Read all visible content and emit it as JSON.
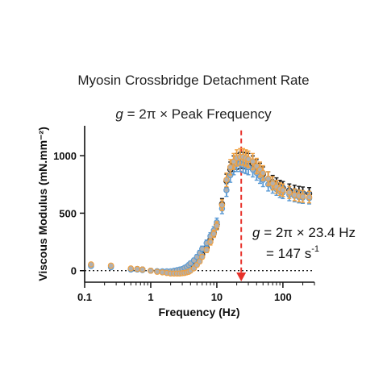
{
  "figure": {
    "title": "Myosin Crossbridge Detachment Rate",
    "equation": {
      "var": "g",
      "rest": " = 2π × Peak Frequency"
    }
  },
  "annotation": {
    "line1_var": "g",
    "line1_rest": " = 2π × 23.4 Hz",
    "line2_prefix": "= 147 s",
    "line2_sup": "-1",
    "peak_frequency_hz": 23.4
  },
  "colors": {
    "black": "#1a1a1a",
    "blue": "#5b9bd5",
    "orange": "#f0a040",
    "marker_fill": "#b0b0b0",
    "peak_line": "#e8312a",
    "zero_line": "#222222"
  },
  "chart_data": {
    "type": "scatter",
    "x_scale": "log",
    "xlabel": "Frequency (Hz)",
    "ylabel": "Viscous Modulus (mN.mm⁻²)",
    "xlim": [
      0.1,
      300
    ],
    "ylim": [
      -100,
      1260
    ],
    "x_ticks": [
      0.1,
      1,
      10,
      100
    ],
    "x_tick_labels": [
      "0.1",
      "1",
      "10",
      "100"
    ],
    "y_ticks": [
      0,
      500,
      1000
    ],
    "y_tick_labels": [
      "0",
      "500",
      "1000"
    ],
    "grid": false,
    "series": [
      {
        "color": "black",
        "x": [
          0.125,
          0.25,
          0.5,
          0.625,
          0.75,
          1,
          1.25,
          1.5,
          1.75,
          2,
          2.25,
          2.5,
          2.75,
          3,
          3.25,
          3.5,
          3.75,
          4,
          4.5,
          5,
          5.5,
          6,
          7,
          8,
          9,
          10,
          12,
          14,
          16,
          18,
          20,
          22.5,
          25,
          27.5,
          30,
          35,
          40,
          45,
          50,
          60,
          70,
          80,
          90,
          100,
          125,
          150,
          175,
          200,
          250
        ],
        "y": [
          50,
          40,
          15,
          15,
          10,
          0,
          -5,
          -10,
          -15,
          -20,
          -20,
          -20,
          -18,
          -15,
          -10,
          -5,
          5,
          20,
          40,
          70,
          100,
          140,
          200,
          270,
          330,
          400,
          580,
          780,
          880,
          930,
          950,
          960,
          960,
          955,
          950,
          930,
          900,
          870,
          840,
          800,
          770,
          750,
          730,
          720,
          700,
          690,
          680,
          675,
          670
        ]
      },
      {
        "color": "blue",
        "x": [
          0.125,
          0.25,
          0.5,
          0.625,
          0.75,
          1,
          1.25,
          1.5,
          1.75,
          2,
          2.25,
          2.5,
          2.75,
          3,
          3.25,
          3.5,
          3.75,
          4,
          4.5,
          5,
          5.5,
          6,
          7,
          8,
          9,
          10,
          12,
          14,
          16,
          18,
          20,
          22.5,
          25,
          27.5,
          30,
          35,
          40,
          45,
          50,
          60,
          70,
          80,
          90,
          100,
          125,
          150,
          175,
          200,
          250
        ],
        "y": [
          40,
          30,
          10,
          10,
          5,
          0,
          -5,
          -5,
          -5,
          -5,
          0,
          5,
          10,
          15,
          25,
          35,
          50,
          65,
          90,
          120,
          155,
          190,
          240,
          300,
          350,
          420,
          540,
          700,
          830,
          900,
          930,
          930,
          920,
          910,
          900,
          880,
          850,
          820,
          790,
          750,
          730,
          710,
          690,
          680,
          660,
          650,
          640,
          635,
          630
        ]
      },
      {
        "color": "orange",
        "x": [
          0.125,
          0.25,
          0.5,
          0.625,
          0.75,
          1,
          1.25,
          1.5,
          1.75,
          2,
          2.25,
          2.5,
          2.75,
          3,
          3.25,
          3.5,
          3.75,
          4,
          4.5,
          5,
          5.5,
          6,
          7,
          8,
          9,
          10,
          12,
          14,
          16,
          18,
          20,
          22.5,
          25,
          27.5,
          30,
          35,
          40,
          45,
          50,
          60,
          70,
          80,
          90,
          100,
          125,
          150,
          175,
          200,
          250
        ],
        "y": [
          55,
          45,
          20,
          15,
          10,
          0,
          -10,
          -15,
          -20,
          -25,
          -25,
          -25,
          -25,
          -22,
          -20,
          -15,
          -10,
          0,
          20,
          50,
          80,
          120,
          180,
          250,
          320,
          390,
          570,
          790,
          900,
          950,
          980,
          990,
          990,
          980,
          970,
          950,
          910,
          880,
          850,
          800,
          760,
          730,
          710,
          700,
          680,
          660,
          650,
          645,
          640
        ]
      }
    ]
  }
}
